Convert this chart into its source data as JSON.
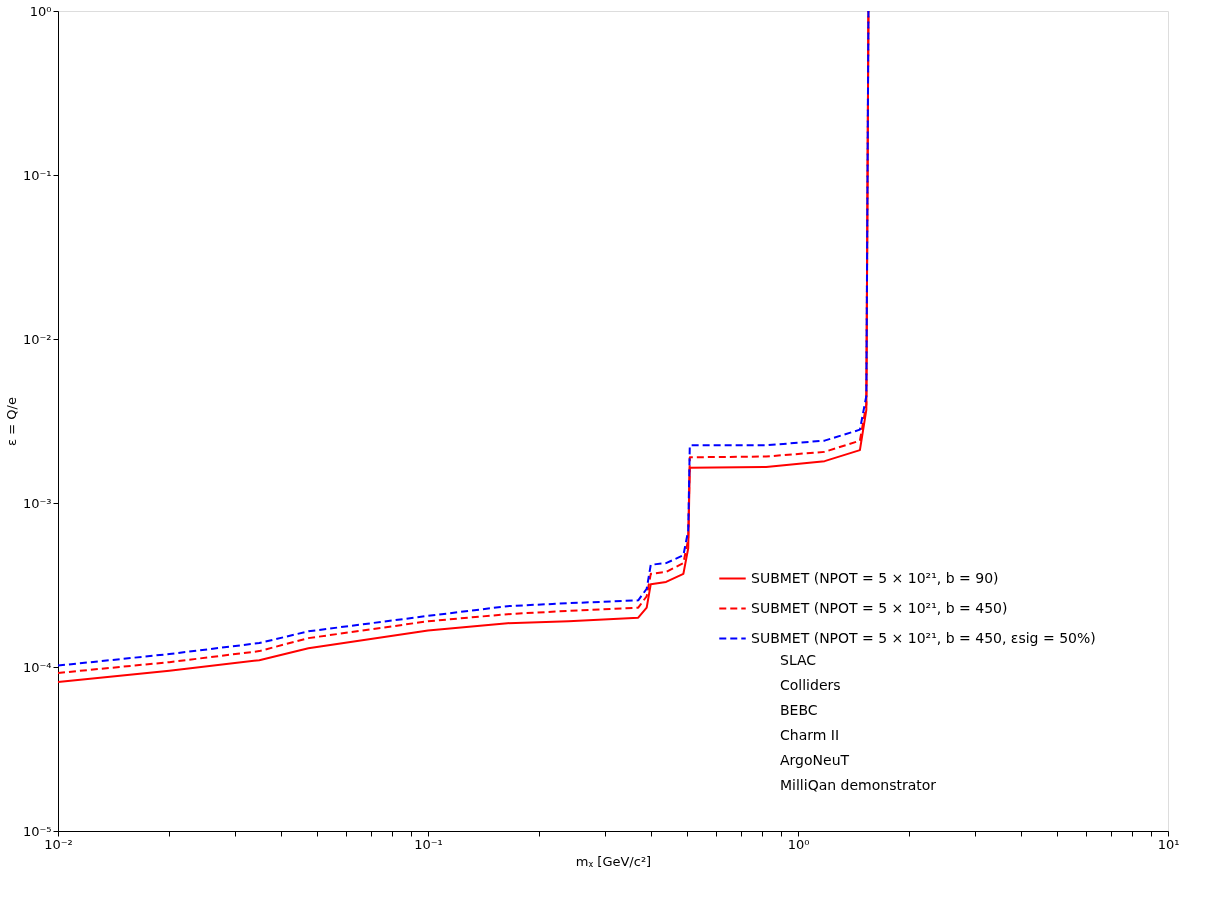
{
  "chart_data": {
    "type": "line",
    "xlabel": "mᵪ [GeV/c²]",
    "ylabel": "ε = Q/e",
    "log": "xy",
    "grid": false,
    "legend": "bottom right",
    "marker": "none",
    "x": [
      0.01,
      0.02,
      0.035,
      0.0475,
      0.1,
      0.164,
      0.24,
      0.37,
      0.39,
      0.4,
      0.44,
      0.49,
      0.505,
      0.51,
      0.82,
      1.18,
      1.47,
      1.53,
      1.55
    ],
    "series": [
      {
        "name": "SUBMET (NPOT = 5 × 10²¹, b = 90)",
        "color": "#ff0000",
        "line_style": "solid",
        "values": [
          8.1e-05,
          9.5e-05,
          0.00011,
          0.00013,
          0.000167,
          0.000185,
          0.00019,
          0.0002,
          0.00023,
          0.00032,
          0.00033,
          0.00037,
          0.00053,
          0.00164,
          0.00166,
          0.0018,
          0.0021,
          0.0037,
          1
        ]
      },
      {
        "name": "SUBMET (NPOT = 5 × 10²¹, b = 450)",
        "color": "#ff0000",
        "line_style": "dashed",
        "values": [
          9.2e-05,
          0.000107,
          0.000125,
          0.00015,
          0.00019,
          0.00021,
          0.00022,
          0.00023,
          0.00027,
          0.00037,
          0.00038,
          0.00043,
          0.0006,
          0.0019,
          0.00192,
          0.00205,
          0.0024,
          0.004,
          1
        ]
      },
      {
        "name": "SUBMET (NPOT = 5 × 10²¹, b = 450, εsig = 50%)",
        "color": "#0000ff",
        "line_style": "dashed",
        "values": [
          0.000102,
          0.00012,
          0.00014,
          0.000165,
          0.000205,
          0.000235,
          0.000245,
          0.000255,
          0.0003,
          0.00042,
          0.00043,
          0.00048,
          0.00068,
          0.00225,
          0.00225,
          0.0024,
          0.0028,
          0.0045,
          1
        ]
      }
    ],
    "annotations": [
      "SLAC",
      "Colliders",
      "BEBC",
      "Charm II",
      "ArgoNeuT",
      "MilliQan demonstrator"
    ],
    "xlim": [
      0.01,
      10
    ],
    "ylim": [
      1e-05,
      1
    ],
    "xticks": [
      {
        "value": 0.01,
        "label": "10⁻²"
      },
      {
        "value": 0.1,
        "label": "10⁻¹"
      },
      {
        "value": 1,
        "label": "10⁰"
      },
      {
        "value": 10,
        "label": "10¹"
      },
      {
        "value": 0.02,
        "label": null
      },
      {
        "value": 0.03,
        "label": null
      },
      {
        "value": 0.04,
        "label": null
      },
      {
        "value": 0.05,
        "label": null
      },
      {
        "value": 0.06,
        "label": null
      },
      {
        "value": 0.07,
        "label": null
      },
      {
        "value": 0.08,
        "label": null
      },
      {
        "value": 0.09,
        "label": null
      },
      {
        "value": 0.2,
        "label": null
      },
      {
        "value": 0.3,
        "label": null
      },
      {
        "value": 0.4,
        "label": null
      },
      {
        "value": 0.5,
        "label": null
      },
      {
        "value": 0.6,
        "label": null
      },
      {
        "value": 0.7,
        "label": null
      },
      {
        "value": 0.8,
        "label": null
      },
      {
        "value": 0.9,
        "label": null
      },
      {
        "value": 2,
        "label": null
      },
      {
        "value": 3,
        "label": null
      },
      {
        "value": 4,
        "label": null
      },
      {
        "value": 5,
        "label": null
      },
      {
        "value": 6,
        "label": null
      },
      {
        "value": 7,
        "label": null
      },
      {
        "value": 8,
        "label": null
      },
      {
        "value": 9,
        "label": null
      }
    ],
    "yticks": [
      {
        "value": 1e-05,
        "label": "10⁻⁵"
      },
      {
        "value": 0.0001,
        "label": "10⁻⁴"
      },
      {
        "value": 0.001,
        "label": "10⁻³"
      },
      {
        "value": 0.01,
        "label": "10⁻²"
      },
      {
        "value": 0.1,
        "label": "10⁻¹"
      },
      {
        "value": 1,
        "label": "10⁰"
      }
    ]
  }
}
